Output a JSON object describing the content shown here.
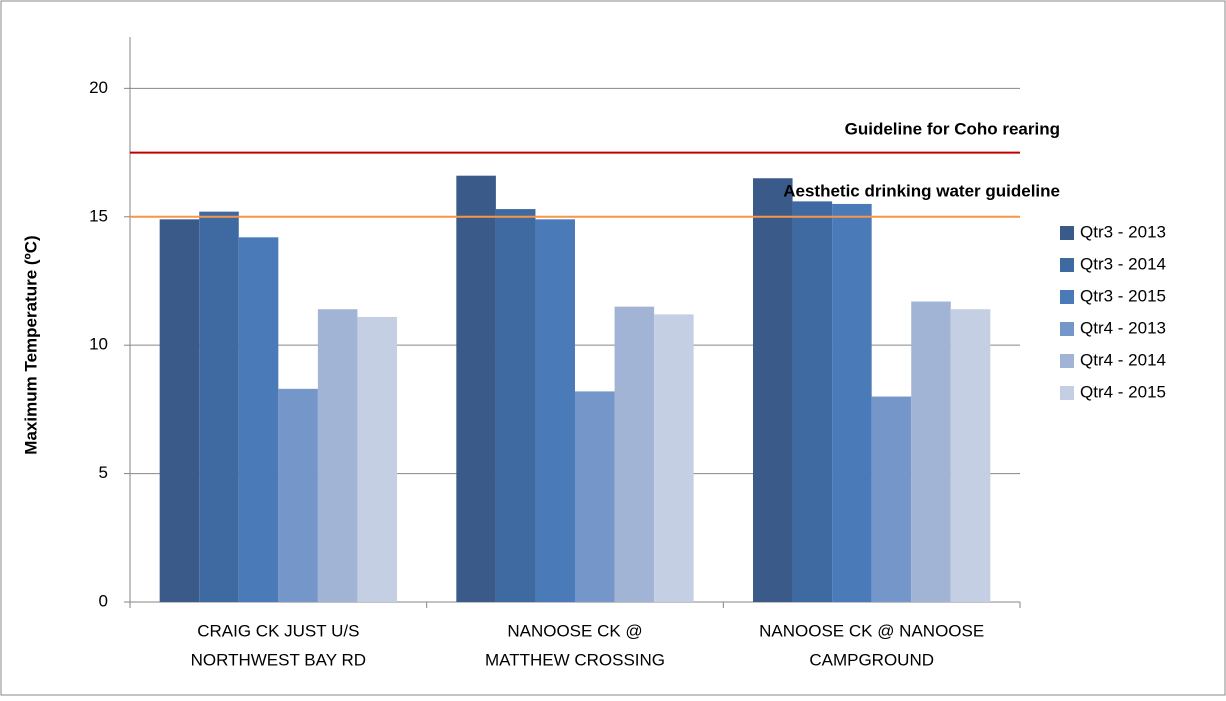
{
  "chart_data": {
    "type": "bar",
    "y_label": "Maximum Temperature (ºC)",
    "categories": [
      [
        "CRAIG CK JUST U/S",
        "NORTHWEST BAY RD"
      ],
      [
        "NANOOSE CK @",
        "MATTHEW CROSSING"
      ],
      [
        "NANOOSE CK @ NANOOSE",
        "CAMPGROUND"
      ]
    ],
    "series": [
      {
        "name": "Qtr3 - 2013",
        "color": "#3a5a8a",
        "values": [
          14.9,
          16.6,
          16.5
        ]
      },
      {
        "name": "Qtr3 - 2014",
        "color": "#3f6aa1",
        "values": [
          15.2,
          15.3,
          15.6
        ]
      },
      {
        "name": "Qtr3 - 2015",
        "color": "#4a7bb8",
        "values": [
          14.2,
          14.9,
          15.5
        ]
      },
      {
        "name": "Qtr4 - 2013",
        "color": "#7596c8",
        "values": [
          8.3,
          8.2,
          8.0
        ]
      },
      {
        "name": "Qtr4 - 2014",
        "color": "#a2b4d6",
        "values": [
          11.4,
          11.5,
          11.7
        ]
      },
      {
        "name": "Qtr4 - 2015",
        "color": "#c5cfe4",
        "values": [
          11.1,
          11.2,
          11.4
        ]
      }
    ],
    "reference_lines": [
      {
        "label": "Guideline for Coho rearing",
        "value": 17.5,
        "color": "#c00000"
      },
      {
        "label": "Aesthetic drinking water guideline",
        "value": 15,
        "color": "#f79646"
      }
    ],
    "ylim": [
      0,
      22
    ],
    "yticks": [
      0,
      5,
      10,
      15,
      20
    ],
    "grid": true,
    "legend": "right"
  }
}
